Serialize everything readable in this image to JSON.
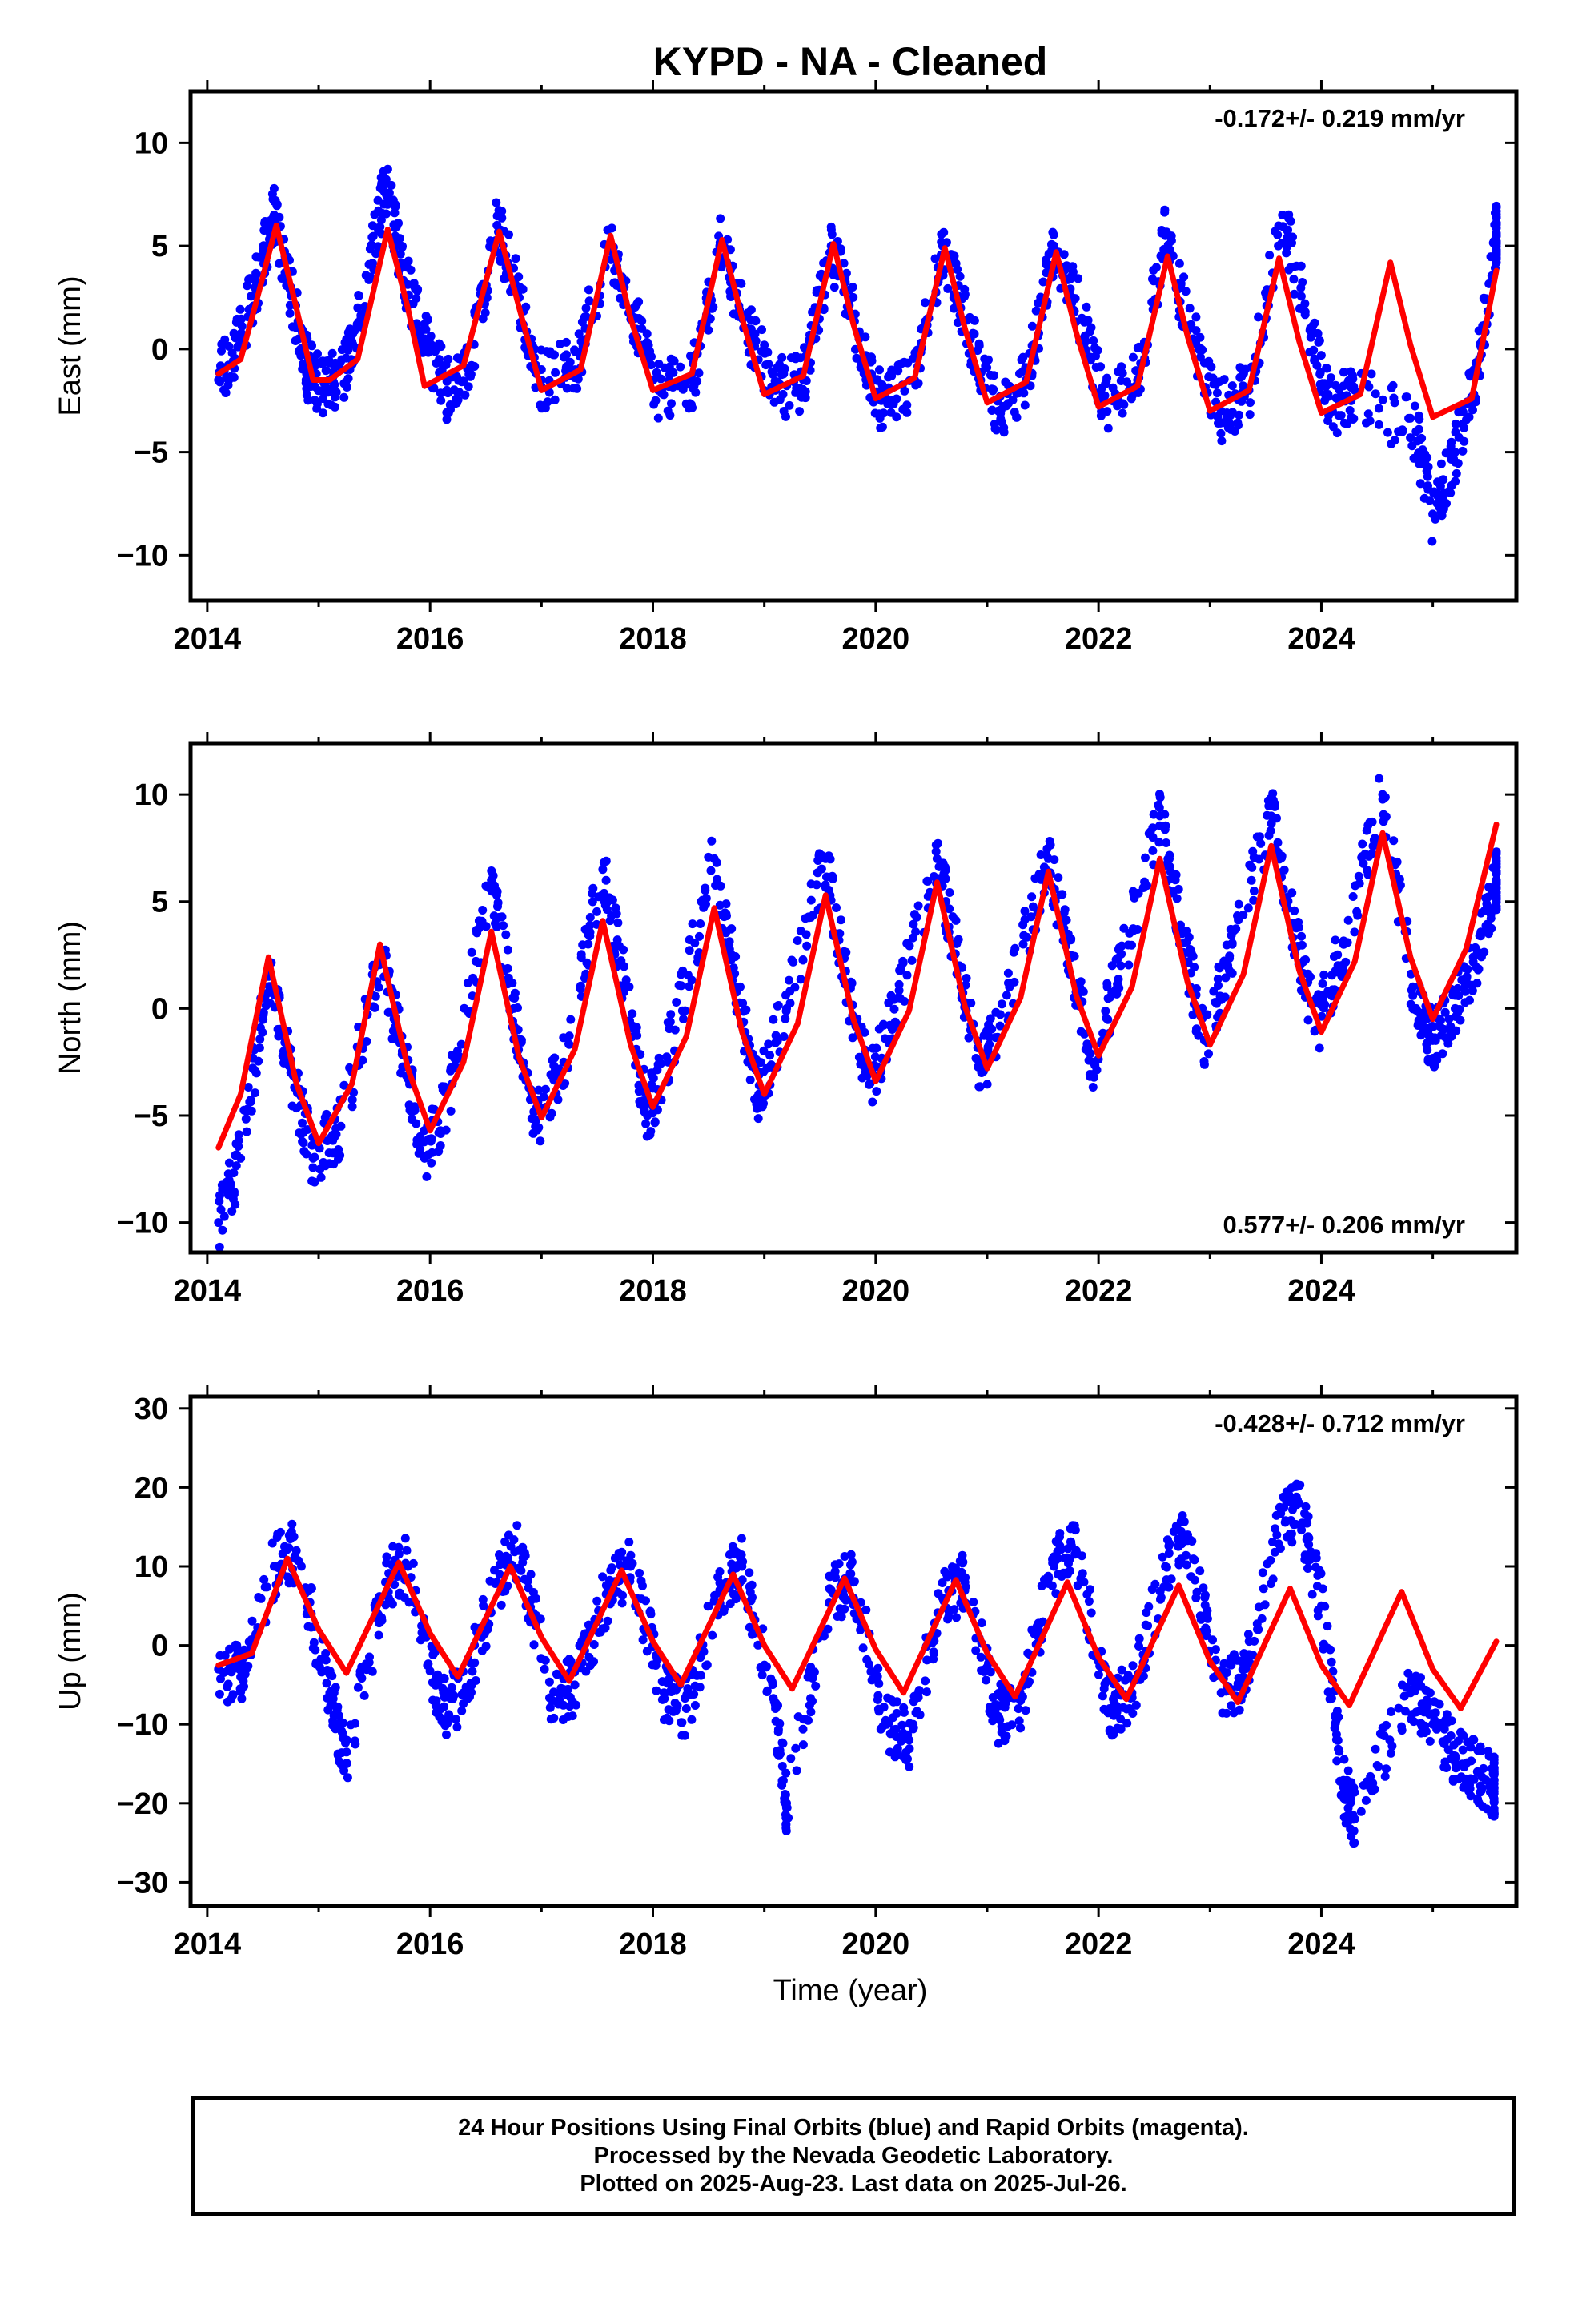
{
  "title": "KYPD  - NA - Cleaned",
  "xlabel": "Time (year)",
  "footer": {
    "line1": "24 Hour Positions Using Final Orbits (blue) and Rapid Orbits (magenta).",
    "line2": "Processed by the Nevada Geodetic Laboratory.",
    "line3": "Plotted on 2025-Aug-23. Last data on 2025-Jul-26."
  },
  "colors": {
    "data": "#0000ff",
    "model": "#ff0000",
    "frame": "#000000"
  },
  "chart_data": [
    {
      "type": "scatter",
      "title": "KYPD  - NA - Cleaned",
      "ylabel": "East (mm)",
      "rate_label": "-0.172+/- 0.219 mm/yr",
      "rate_placement": "top-right",
      "xlim": [
        2013.85,
        2025.75
      ],
      "ylim": [
        -12.2,
        12.5
      ],
      "x_ticks": [
        2014,
        2016,
        2018,
        2020,
        2022,
        2024
      ],
      "x_tick_labels": [
        "2014",
        "2016",
        "2018",
        "2020",
        "2022",
        "2024"
      ],
      "y_ticks": [
        -10,
        -5,
        0,
        5,
        10
      ],
      "y_tick_labels": [
        "−10",
        "−5",
        "0",
        "5",
        "10"
      ],
      "series": [
        {
          "style": "points",
          "x": [
            2014.1,
            2014.3,
            2014.5,
            2014.6,
            2014.75,
            2014.9,
            2015.05,
            2015.25,
            2015.45,
            2015.6,
            2015.75,
            2015.95,
            2016.15,
            2016.35,
            2016.6,
            2016.8,
            2017.0,
            2017.3,
            2017.6,
            2017.85,
            2018.05,
            2018.35,
            2018.6,
            2018.85,
            2019.1,
            2019.35,
            2019.6,
            2019.85,
            2020.05,
            2020.35,
            2020.6,
            2020.85,
            2021.1,
            2021.35,
            2021.6,
            2021.85,
            2022.05,
            2022.35,
            2022.6,
            2022.85,
            2023.1,
            2023.35,
            2023.65,
            2023.9,
            2024.1,
            2024.3,
            2024.85,
            2025.0,
            2025.2,
            2025.4,
            2025.57
          ],
          "y": [
            -1.5,
            0.5,
            4.5,
            6.5,
            3.0,
            -1.0,
            -2.0,
            -1.0,
            3.5,
            8.0,
            4.0,
            0.5,
            -2.0,
            -1.0,
            6.0,
            2.5,
            -1.5,
            -1.0,
            5.0,
            1.5,
            -2.0,
            -1.5,
            5.0,
            1.0,
            -2.0,
            -1.5,
            5.0,
            0.5,
            -2.5,
            -1.5,
            5.0,
            0.5,
            -3.0,
            -1.5,
            5.0,
            1.5,
            -2.5,
            -1.5,
            5.5,
            0.5,
            -3.0,
            -2.0,
            6.5,
            1.0,
            -3.0,
            -2.0,
            -4.0,
            -8.0,
            -5.0,
            -1.0,
            5.5
          ]
        },
        {
          "style": "line",
          "x": [
            2014.1,
            2014.3,
            2014.45,
            2014.62,
            2014.8,
            2014.95,
            2015.1,
            2015.35,
            2015.62,
            2015.8,
            2015.95,
            2016.3,
            2016.62,
            2016.8,
            2017.0,
            2017.35,
            2017.62,
            2017.8,
            2018.0,
            2018.35,
            2018.62,
            2018.8,
            2019.0,
            2019.35,
            2019.62,
            2019.8,
            2020.0,
            2020.35,
            2020.62,
            2020.8,
            2021.0,
            2021.35,
            2021.62,
            2021.8,
            2022.0,
            2022.35,
            2022.62,
            2022.8,
            2023.0,
            2023.35,
            2023.62,
            2023.8,
            2024.0,
            2024.35,
            2024.62,
            2024.8,
            2025.0,
            2025.35,
            2025.57
          ],
          "y": [
            -1.2,
            -0.5,
            2.5,
            6.0,
            2.0,
            -1.5,
            -1.5,
            -0.5,
            5.8,
            2.0,
            -1.8,
            -0.8,
            5.7,
            2.0,
            -2.0,
            -1.0,
            5.5,
            1.5,
            -2.0,
            -1.2,
            5.3,
            1.5,
            -2.2,
            -1.3,
            5.1,
            1.2,
            -2.4,
            -1.4,
            4.9,
            1.0,
            -2.6,
            -1.6,
            4.7,
            0.8,
            -2.8,
            -1.8,
            4.5,
            0.6,
            -3.0,
            -2.0,
            4.4,
            0.4,
            -3.1,
            -2.2,
            4.2,
            0.2,
            -3.3,
            -2.4,
            3.8
          ]
        }
      ]
    },
    {
      "type": "scatter",
      "ylabel": "North (mm)",
      "rate_label": "0.577+/- 0.206 mm/yr",
      "rate_placement": "bottom-right",
      "xlim": [
        2013.85,
        2025.75
      ],
      "ylim": [
        -11.4,
        12.4
      ],
      "x_ticks": [
        2014,
        2016,
        2018,
        2020,
        2022,
        2024
      ],
      "x_tick_labels": [
        "2014",
        "2016",
        "2018",
        "2020",
        "2022",
        "2024"
      ],
      "y_ticks": [
        -10,
        -5,
        0,
        5,
        10
      ],
      "y_tick_labels": [
        "−10",
        "−5",
        "0",
        "5",
        "10"
      ],
      "series": [
        {
          "style": "points",
          "x": [
            2014.1,
            2014.3,
            2014.55,
            2014.75,
            2014.95,
            2015.2,
            2015.55,
            2015.75,
            2015.95,
            2016.2,
            2016.55,
            2016.75,
            2016.95,
            2017.2,
            2017.55,
            2017.75,
            2017.95,
            2018.2,
            2018.55,
            2018.75,
            2018.95,
            2019.2,
            2019.55,
            2019.75,
            2019.95,
            2020.2,
            2020.55,
            2020.75,
            2020.95,
            2021.2,
            2021.55,
            2021.75,
            2021.95,
            2022.2,
            2022.55,
            2022.75,
            2022.95,
            2023.2,
            2023.55,
            2023.75,
            2023.95,
            2024.2,
            2024.55,
            2024.85,
            2025.0,
            2025.2,
            2025.4,
            2025.57
          ],
          "y": [
            -10.0,
            -7.0,
            1.5,
            -3.0,
            -7.0,
            -5.5,
            2.5,
            -2.0,
            -7.0,
            -3.5,
            6.0,
            0.0,
            -5.5,
            -2.5,
            6.5,
            1.0,
            -5.0,
            -1.0,
            7.0,
            1.0,
            -4.0,
            0.0,
            7.0,
            1.0,
            -3.5,
            0.5,
            7.0,
            2.0,
            -3.0,
            1.0,
            7.0,
            2.5,
            -2.5,
            2.0,
            9.0,
            3.5,
            -1.5,
            3.0,
            9.0,
            4.0,
            -1.0,
            3.0,
            10.0,
            0.0,
            -1.5,
            0.0,
            2.5,
            6.0
          ]
        },
        {
          "style": "line",
          "x": [
            2014.1,
            2014.3,
            2014.55,
            2014.8,
            2015.0,
            2015.3,
            2015.55,
            2015.8,
            2016.0,
            2016.3,
            2016.55,
            2016.8,
            2017.0,
            2017.3,
            2017.55,
            2017.8,
            2018.0,
            2018.3,
            2018.55,
            2018.8,
            2019.0,
            2019.3,
            2019.55,
            2019.8,
            2020.0,
            2020.3,
            2020.55,
            2020.8,
            2021.0,
            2021.3,
            2021.55,
            2021.8,
            2022.0,
            2022.3,
            2022.55,
            2022.8,
            2023.0,
            2023.3,
            2023.55,
            2023.8,
            2024.0,
            2024.3,
            2024.55,
            2024.8,
            2025.0,
            2025.3,
            2025.57
          ],
          "y": [
            -6.5,
            -4.0,
            2.4,
            -3.5,
            -6.3,
            -3.5,
            3.0,
            -2.8,
            -5.7,
            -2.5,
            3.6,
            -2.3,
            -5.1,
            -1.9,
            4.1,
            -1.7,
            -4.6,
            -1.3,
            4.7,
            -1.1,
            -4.0,
            -0.7,
            5.3,
            -0.5,
            -3.4,
            -0.1,
            5.9,
            0.1,
            -2.8,
            0.5,
            6.4,
            0.6,
            -2.2,
            1.0,
            7.0,
            1.2,
            -1.7,
            1.6,
            7.6,
            1.8,
            -1.1,
            2.2,
            8.2,
            2.4,
            -0.5,
            2.8,
            8.6
          ]
        }
      ]
    },
    {
      "type": "scatter",
      "ylabel": "Up (mm)",
      "rate_label": "-0.428+/- 0.712 mm/yr",
      "rate_placement": "top-right",
      "xlim": [
        2013.85,
        2025.75
      ],
      "ylim": [
        -33,
        31.5
      ],
      "x_ticks": [
        2014,
        2016,
        2018,
        2020,
        2022,
        2024
      ],
      "x_tick_labels": [
        "2014",
        "2016",
        "2018",
        "2020",
        "2022",
        "2024"
      ],
      "y_ticks": [
        -30,
        -20,
        -10,
        0,
        10,
        20,
        30
      ],
      "y_tick_labels": [
        "−30",
        "−20",
        "−10",
        "0",
        "10",
        "20",
        "30"
      ],
      "series": [
        {
          "style": "points",
          "x": [
            2014.1,
            2014.3,
            2014.6,
            2014.8,
            2015.1,
            2015.25,
            2015.6,
            2015.8,
            2016.1,
            2016.3,
            2016.6,
            2016.8,
            2017.1,
            2017.3,
            2017.6,
            2017.8,
            2018.1,
            2018.3,
            2018.6,
            2018.8,
            2019.1,
            2019.2,
            2019.6,
            2019.8,
            2020.1,
            2020.3,
            2020.6,
            2020.8,
            2021.1,
            2021.3,
            2021.6,
            2021.8,
            2022.1,
            2022.3,
            2022.6,
            2022.8,
            2023.1,
            2023.3,
            2023.6,
            2023.8,
            2024.0,
            2024.2,
            2024.3,
            2024.8,
            2025.0,
            2025.2,
            2025.4,
            2025.55
          ],
          "y": [
            -3.0,
            -4.0,
            10.0,
            12.0,
            -6.0,
            -15.0,
            8.0,
            10.0,
            -8.0,
            -6.0,
            8.0,
            12.0,
            -7.0,
            -5.0,
            7.0,
            10.0,
            -6.0,
            -8.0,
            7.0,
            10.0,
            -8.0,
            -20.0,
            7.0,
            8.0,
            -10.0,
            -12.0,
            6.0,
            8.0,
            -9.0,
            -7.0,
            10.0,
            12.0,
            -8.0,
            -6.0,
            10.0,
            14.0,
            -6.0,
            -4.0,
            14.0,
            18.0,
            5.0,
            -18.0,
            -22.0,
            -6.0,
            -10.0,
            -14.0,
            -16.0,
            -18.0
          ]
        },
        {
          "style": "line",
          "x": [
            2014.1,
            2014.4,
            2014.72,
            2015.0,
            2015.25,
            2015.72,
            2016.0,
            2016.25,
            2016.72,
            2017.0,
            2017.25,
            2017.72,
            2018.0,
            2018.25,
            2018.72,
            2019.0,
            2019.25,
            2019.72,
            2020.0,
            2020.25,
            2020.72,
            2021.0,
            2021.25,
            2021.72,
            2022.0,
            2022.25,
            2022.72,
            2023.0,
            2023.25,
            2023.72,
            2024.0,
            2024.25,
            2024.72,
            2025.0,
            2025.25,
            2025.57
          ],
          "y": [
            -2.5,
            -1.0,
            11.0,
            2.0,
            -3.5,
            10.5,
            1.5,
            -4.0,
            10.0,
            1.0,
            -4.5,
            9.5,
            0.5,
            -5.0,
            9.0,
            0.0,
            -5.5,
            8.5,
            -0.5,
            -6.0,
            8.3,
            -1.0,
            -6.5,
            8.0,
            -1.5,
            -6.8,
            7.6,
            -2.0,
            -7.2,
            7.2,
            -2.5,
            -7.6,
            6.8,
            -3.0,
            -8.0,
            0.5
          ]
        }
      ]
    }
  ]
}
